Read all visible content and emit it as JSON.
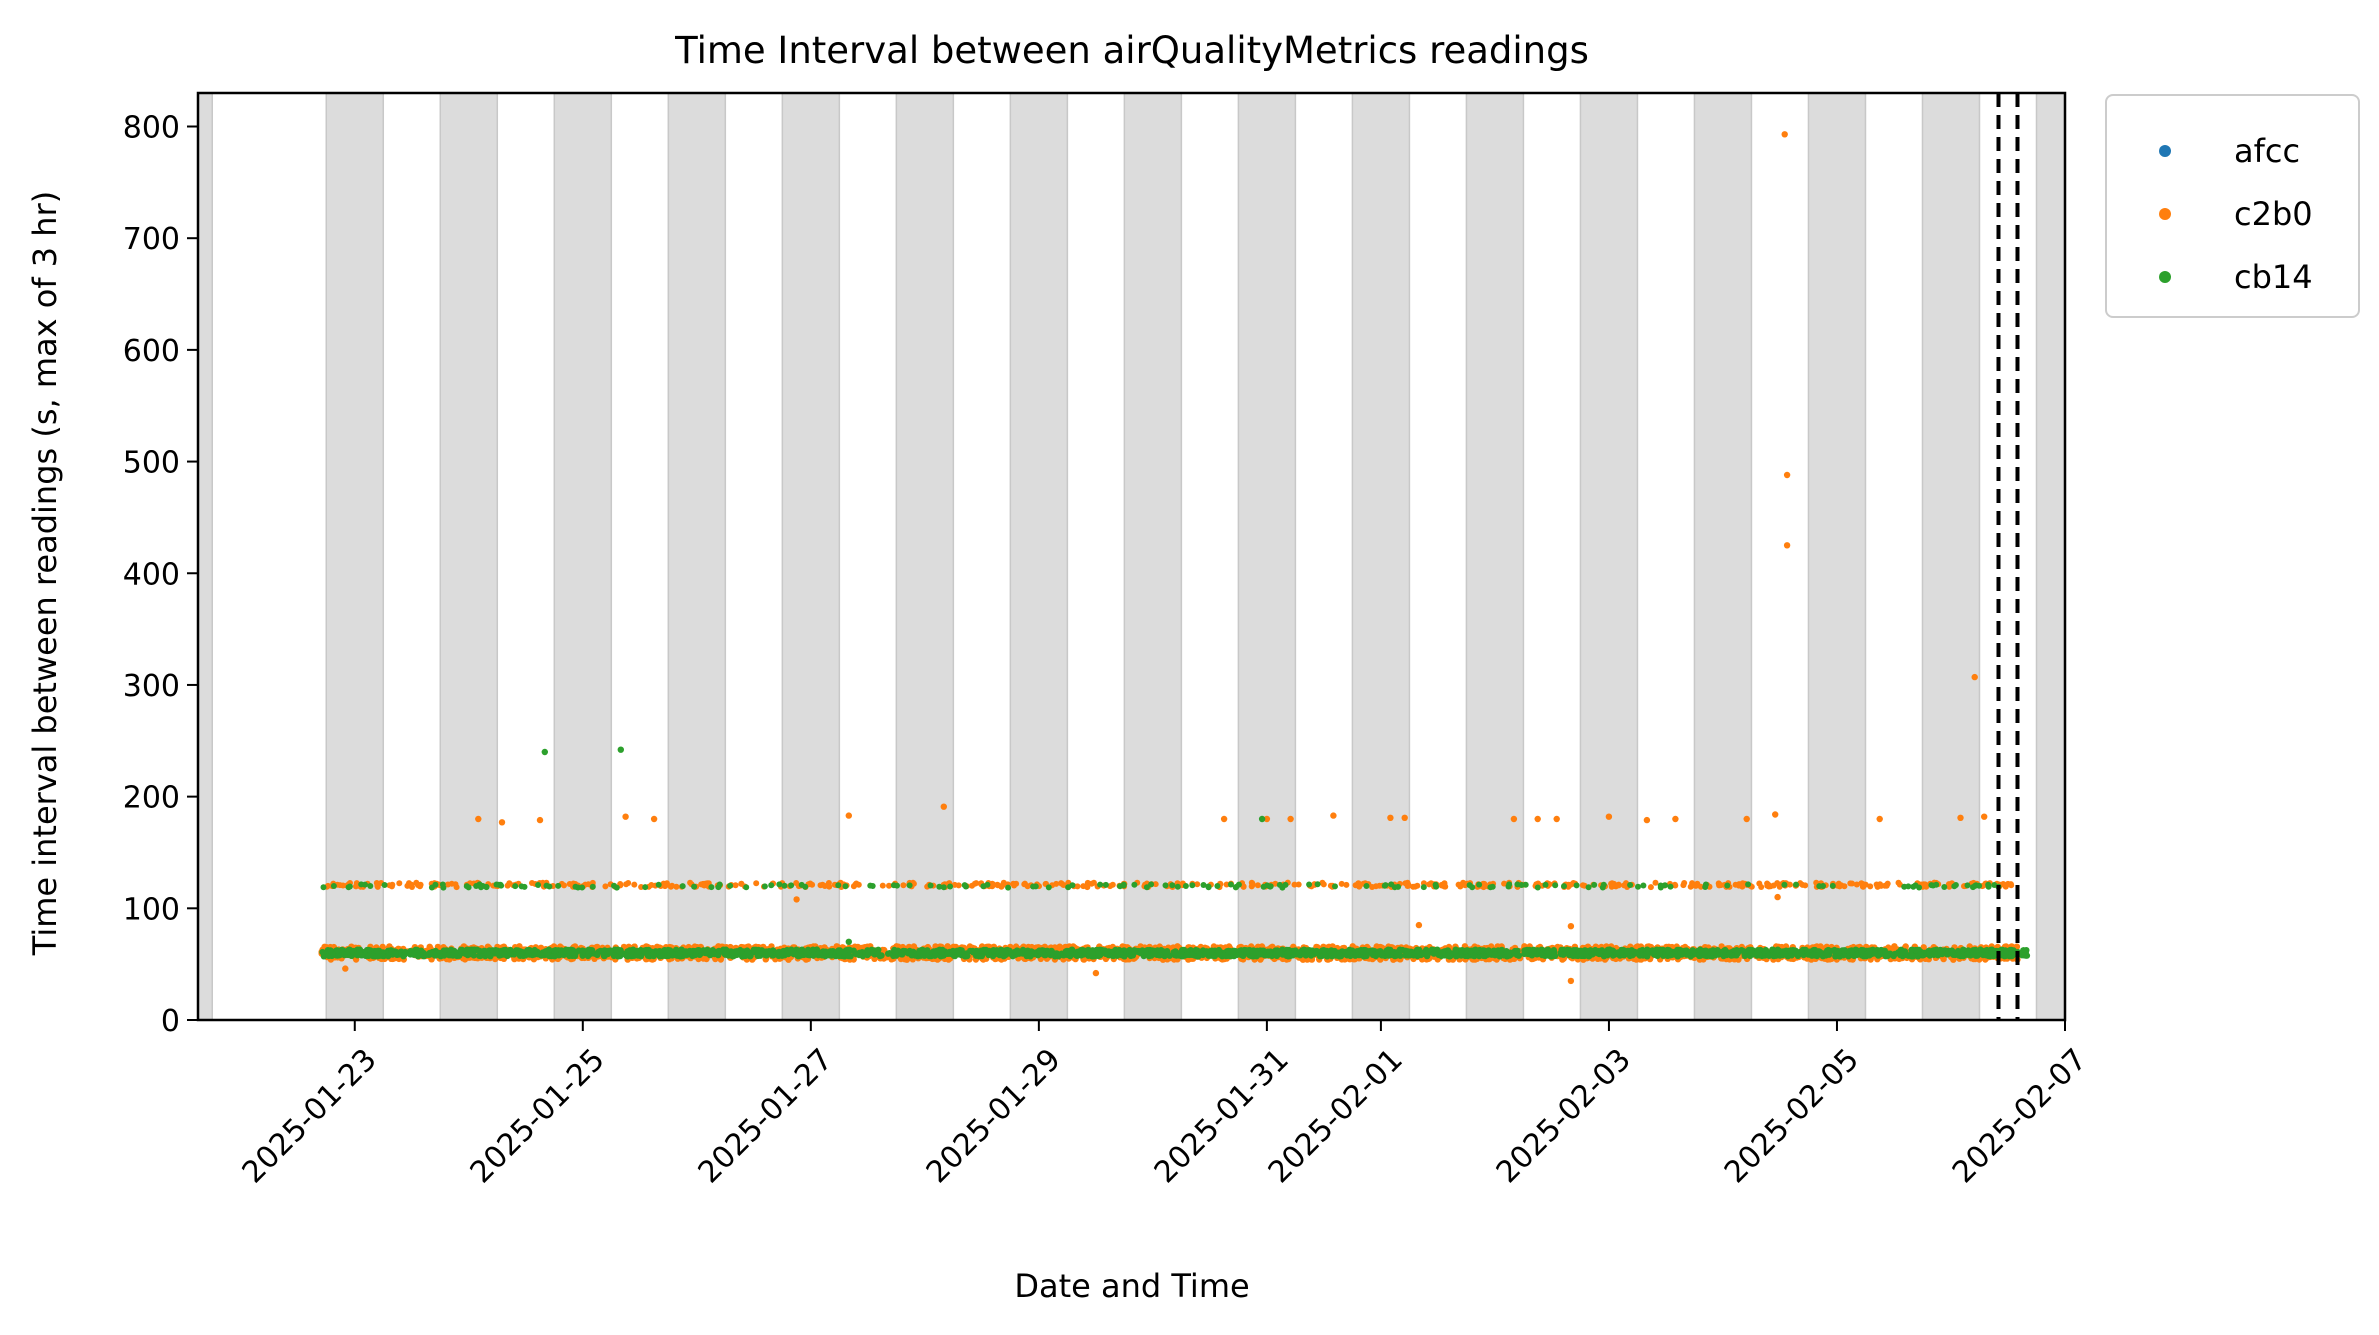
{
  "chart_data": {
    "type": "scatter",
    "title": "Time Interval between airQualityMetrics readings",
    "xlabel": "Date and Time",
    "ylabel": "Time interval between readings (s, max of 3 hr)",
    "xlim": [
      "2025-01-21T15:00",
      "2025-02-07T00:00"
    ],
    "ylim": [
      0,
      830
    ],
    "x_ticks": [
      "2025-01-23",
      "2025-01-25",
      "2025-01-27",
      "2025-01-29",
      "2025-01-31",
      "2025-02-01",
      "2025-02-03",
      "2025-02-05",
      "2025-02-07"
    ],
    "y_ticks": [
      0,
      100,
      200,
      300,
      400,
      500,
      600,
      700,
      800
    ],
    "grid": false,
    "legend_position": "outside-top-right",
    "night_shading": {
      "color": "#dcdcdc",
      "bands": [
        [
          "2025-01-21T15:00",
          "2025-01-21T18:00"
        ],
        [
          "2025-01-22T18:00",
          "2025-01-23T06:00"
        ],
        [
          "2025-01-23T18:00",
          "2025-01-24T06:00"
        ],
        [
          "2025-01-24T18:00",
          "2025-01-25T06:00"
        ],
        [
          "2025-01-25T18:00",
          "2025-01-26T06:00"
        ],
        [
          "2025-01-26T18:00",
          "2025-01-27T06:00"
        ],
        [
          "2025-01-27T18:00",
          "2025-01-28T06:00"
        ],
        [
          "2025-01-28T18:00",
          "2025-01-29T06:00"
        ],
        [
          "2025-01-29T18:00",
          "2025-01-30T06:00"
        ],
        [
          "2025-01-30T18:00",
          "2025-01-31T06:00"
        ],
        [
          "2025-01-31T18:00",
          "2025-02-01T06:00"
        ],
        [
          "2025-02-01T18:00",
          "2025-02-02T06:00"
        ],
        [
          "2025-02-02T18:00",
          "2025-02-03T06:00"
        ],
        [
          "2025-02-03T18:00",
          "2025-02-04T06:00"
        ],
        [
          "2025-02-04T18:00",
          "2025-02-05T06:00"
        ],
        [
          "2025-02-05T18:00",
          "2025-02-06T06:00"
        ],
        [
          "2025-02-06T18:00",
          "2025-02-07T00:00"
        ]
      ]
    },
    "vertical_lines": [
      "2025-02-06T10:00",
      "2025-02-06T14:00"
    ],
    "series": [
      {
        "name": "afcc",
        "color": "#1f77b4",
        "points": []
      },
      {
        "name": "c2b0",
        "color": "#ff7f0e",
        "baseline": {
          "x_range": [
            "2025-01-22T17:00",
            "2025-02-06T14:00"
          ],
          "value": 60,
          "spread": 12
        },
        "band_120": {
          "x_range": [
            "2025-01-22T17:00",
            "2025-02-06T14:00"
          ],
          "value": 121,
          "spread": 4
        },
        "points": [
          [
            "2025-01-24T02:00",
            180
          ],
          [
            "2025-01-24T07:00",
            177
          ],
          [
            "2025-01-24T15:00",
            179
          ],
          [
            "2025-01-25T09:00",
            182
          ],
          [
            "2025-01-25T15:00",
            180
          ],
          [
            "2025-01-27T08:00",
            183
          ],
          [
            "2025-01-28T04:00",
            191
          ],
          [
            "2025-01-30T15:00",
            180
          ],
          [
            "2025-01-31T00:00",
            180
          ],
          [
            "2025-01-31T05:00",
            180
          ],
          [
            "2025-01-31T14:00",
            183
          ],
          [
            "2025-02-01T02:00",
            181
          ],
          [
            "2025-02-01T05:00",
            181
          ],
          [
            "2025-02-02T04:00",
            180
          ],
          [
            "2025-02-02T09:00",
            180
          ],
          [
            "2025-02-02T13:00",
            180
          ],
          [
            "2025-02-03T00:00",
            182
          ],
          [
            "2025-02-03T08:00",
            179
          ],
          [
            "2025-02-03T14:00",
            180
          ],
          [
            "2025-02-04T05:00",
            180
          ],
          [
            "2025-02-04T11:00",
            184
          ],
          [
            "2025-02-04T13:00",
            793
          ],
          [
            "2025-02-04T13:30",
            488
          ],
          [
            "2025-02-04T13:30",
            425
          ],
          [
            "2025-02-05T09:00",
            180
          ],
          [
            "2025-02-06T02:00",
            181
          ],
          [
            "2025-02-06T05:00",
            307
          ],
          [
            "2025-02-06T07:00",
            182
          ],
          [
            "2025-02-04T11:30",
            110
          ],
          [
            "2025-01-26T21:00",
            108
          ],
          [
            "2025-01-29T12:00",
            42
          ],
          [
            "2025-02-02T16:00",
            35
          ],
          [
            "2025-02-02T16:00",
            84
          ],
          [
            "2025-02-01T08:00",
            85
          ],
          [
            "2025-01-22T22:00",
            46
          ]
        ]
      },
      {
        "name": "cb14",
        "color": "#2ca02c",
        "baseline": {
          "x_range": [
            "2025-01-22T17:00",
            "2025-02-06T16:00"
          ],
          "value": 60,
          "spread": 6
        },
        "band_120": {
          "x_range": [
            "2025-01-22T17:00",
            "2025-02-06T10:00"
          ],
          "value": 120,
          "spread": 3
        },
        "points": [
          [
            "2025-01-24T16:00",
            240
          ],
          [
            "2025-01-25T08:00",
            242
          ],
          [
            "2025-01-30T23:00",
            180
          ],
          [
            "2025-01-27T08:00",
            70
          ]
        ]
      }
    ]
  }
}
